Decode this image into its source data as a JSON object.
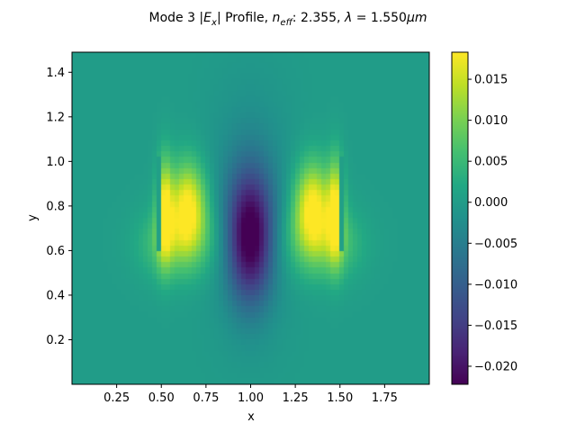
{
  "chart_data": {
    "type": "heatmap",
    "title": {
      "prefix": "Mode 3 |",
      "field": "E",
      "field_sub": "x",
      "mid": "| Profile, ",
      "neff": "n",
      "neff_sub": "eff",
      "neff_value": ": 2.355, ",
      "lambda": "λ",
      "lambda_value": " = 1.550",
      "unit": "μm"
    },
    "xlabel": "x",
    "ylabel": "y",
    "xlim": [
      0.0,
      2.0
    ],
    "ylim": [
      0.0,
      1.49
    ],
    "xticks": [
      0.25,
      0.5,
      0.75,
      1.0,
      1.25,
      1.5,
      1.75
    ],
    "xtick_labels": [
      "0.25",
      "0.50",
      "0.75",
      "1.00",
      "1.25",
      "1.50",
      "1.75"
    ],
    "yticks": [
      0.2,
      0.4,
      0.6,
      0.8,
      1.0,
      1.2,
      1.4
    ],
    "ytick_labels": [
      "0.2",
      "0.4",
      "0.6",
      "0.8",
      "1.0",
      "1.2",
      "1.4"
    ],
    "colormap": "viridis",
    "colorbar": {
      "vmin": -0.0222,
      "vmax": 0.0183,
      "ticks": [
        0.015,
        0.01,
        0.005,
        0.0,
        -0.005,
        -0.01,
        -0.015,
        -0.02
      ],
      "tick_labels": [
        "0.015",
        "0.010",
        "0.005",
        "0.000",
        "−0.005",
        "−0.010",
        "−0.015",
        "−0.020"
      ]
    },
    "field_features": {
      "background_value": 0.0,
      "central_lobe": {
        "x": 1.0,
        "y": 0.66,
        "peak": -0.0222
      },
      "side_lobes": [
        {
          "x": 0.65,
          "y": 0.8,
          "peak": 0.0183
        },
        {
          "x": 1.35,
          "y": 0.8,
          "peak": 0.0183
        }
      ],
      "outer_lobes": [
        {
          "x": 0.52,
          "y": 0.78,
          "peak": 0.016
        },
        {
          "x": 1.48,
          "y": 0.78,
          "peak": 0.016
        }
      ],
      "slots": [
        {
          "x_min": 0.465,
          "x_max": 0.49,
          "y_min": 0.6,
          "y_max": 1.02
        },
        {
          "x_min": 1.51,
          "x_max": 1.535,
          "y_min": 0.6,
          "y_max": 1.02
        }
      ]
    }
  }
}
